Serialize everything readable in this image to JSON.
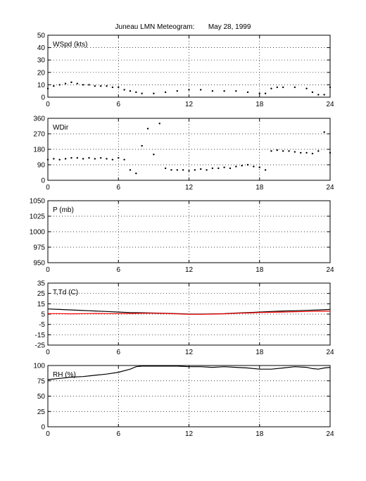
{
  "title": "Juneau LMN Meteogram:       May 28, 1999",
  "colors": {
    "axis": "#000000",
    "grid": "#000000",
    "temperature": "#000000",
    "dewpoint": "#ff0000",
    "rh": "#000000",
    "wind": "#000000"
  },
  "chart_data": [
    {
      "id": "wspd",
      "type": "scatter",
      "panel_label": "WSpd (kts)",
      "xlim": [
        0,
        24
      ],
      "ylim": [
        0,
        50
      ],
      "x_ticks": [
        0,
        6,
        12,
        18,
        24
      ],
      "y_ticks": [
        0,
        10,
        20,
        30,
        40,
        50
      ],
      "grid": true,
      "series": [
        {
          "values": [
            [
              0,
              7
            ],
            [
              0.5,
              9
            ],
            [
              1,
              10
            ],
            [
              1.5,
              11
            ],
            [
              2,
              12
            ],
            [
              2.5,
              11
            ],
            [
              3,
              10
            ],
            [
              3.5,
              10
            ],
            [
              4,
              9
            ],
            [
              4.5,
              9
            ],
            [
              5,
              9
            ],
            [
              5.5,
              8
            ],
            [
              6,
              8
            ],
            [
              6.5,
              6
            ],
            [
              7,
              5
            ],
            [
              7.5,
              4
            ],
            [
              8,
              3
            ],
            [
              9,
              3
            ],
            [
              10,
              4
            ],
            [
              11,
              5
            ],
            [
              12,
              6
            ],
            [
              13,
              6
            ],
            [
              14,
              5
            ],
            [
              15,
              5
            ],
            [
              16,
              5
            ],
            [
              17,
              4
            ],
            [
              18,
              3
            ],
            [
              18.5,
              3
            ],
            [
              19,
              7
            ],
            [
              19.5,
              8
            ],
            [
              20,
              8
            ],
            [
              21,
              8
            ],
            [
              22,
              7
            ],
            [
              22.5,
              4
            ],
            [
              23,
              2
            ],
            [
              23.5,
              2
            ],
            [
              24,
              8
            ]
          ]
        }
      ]
    },
    {
      "id": "wdir",
      "type": "scatter",
      "panel_label": "WDir",
      "xlim": [
        0,
        24
      ],
      "ylim": [
        0,
        360
      ],
      "x_ticks": [
        0,
        6,
        12,
        18,
        24
      ],
      "y_ticks": [
        0,
        90,
        180,
        270,
        360
      ],
      "grid": true,
      "series": [
        {
          "values": [
            [
              0,
              120
            ],
            [
              0.5,
              125
            ],
            [
              1,
              120
            ],
            [
              1.5,
              125
            ],
            [
              2,
              130
            ],
            [
              2.5,
              130
            ],
            [
              3,
              125
            ],
            [
              3.5,
              130
            ],
            [
              4,
              125
            ],
            [
              4.5,
              130
            ],
            [
              5,
              125
            ],
            [
              5.5,
              120
            ],
            [
              6,
              130
            ],
            [
              6.5,
              120
            ],
            [
              7,
              60
            ],
            [
              7.5,
              40
            ],
            [
              8,
              200
            ],
            [
              8.5,
              300
            ],
            [
              9,
              150
            ],
            [
              9.5,
              330
            ],
            [
              10,
              70
            ],
            [
              10.5,
              60
            ],
            [
              11,
              60
            ],
            [
              11.5,
              60
            ],
            [
              12,
              55
            ],
            [
              12.5,
              60
            ],
            [
              13,
              65
            ],
            [
              13.5,
              60
            ],
            [
              14,
              70
            ],
            [
              14.5,
              70
            ],
            [
              15,
              75
            ],
            [
              15.5,
              70
            ],
            [
              16,
              80
            ],
            [
              16.5,
              85
            ],
            [
              17,
              90
            ],
            [
              17.5,
              80
            ],
            [
              18,
              75
            ],
            [
              18.5,
              60
            ],
            [
              19,
              170
            ],
            [
              19.5,
              175
            ],
            [
              20,
              170
            ],
            [
              20.5,
              170
            ],
            [
              21,
              165
            ],
            [
              21.5,
              160
            ],
            [
              22,
              160
            ],
            [
              22.5,
              155
            ],
            [
              23,
              170
            ],
            [
              23.5,
              280
            ],
            [
              24,
              160
            ]
          ]
        }
      ]
    },
    {
      "id": "pressure",
      "type": "scatter",
      "panel_label": "P (mb)",
      "xlim": [
        0,
        24
      ],
      "ylim": [
        950,
        1050
      ],
      "x_ticks": [
        0,
        6,
        12,
        18,
        24
      ],
      "y_ticks": [
        950,
        975,
        1000,
        1025,
        1050
      ],
      "grid": true,
      "series": []
    },
    {
      "id": "temp",
      "type": "line",
      "panel_label": "T,Td (C)",
      "xlim": [
        0,
        24
      ],
      "ylim": [
        -25,
        35
      ],
      "x_ticks": [
        0,
        6,
        12,
        18,
        24
      ],
      "y_ticks": [
        -25,
        -15,
        -5,
        5,
        15,
        25,
        35
      ],
      "grid": true,
      "series": [
        {
          "values": [
            [
              0,
              10
            ],
            [
              1,
              9.5
            ],
            [
              2,
              9
            ],
            [
              3,
              8.5
            ],
            [
              4,
              8
            ],
            [
              5,
              7.5
            ],
            [
              6,
              7
            ],
            [
              7,
              6.5
            ],
            [
              8,
              6.3
            ],
            [
              9,
              6
            ],
            [
              10,
              5.8
            ],
            [
              11,
              5.5
            ],
            [
              12,
              5
            ],
            [
              13,
              5
            ],
            [
              14,
              5.2
            ],
            [
              15,
              5.5
            ],
            [
              16,
              6
            ],
            [
              17,
              6.5
            ],
            [
              18,
              7
            ],
            [
              19,
              7.5
            ],
            [
              20,
              8
            ],
            [
              21,
              8.3
            ],
            [
              22,
              8.6
            ],
            [
              23,
              9
            ],
            [
              24,
              9.5
            ]
          ]
        },
        {
          "values": [
            [
              0,
              5.5
            ],
            [
              1,
              5.5
            ],
            [
              2,
              5.3
            ],
            [
              3,
              5.5
            ],
            [
              4,
              5.6
            ],
            [
              5,
              5.5
            ],
            [
              6,
              5.5
            ],
            [
              7,
              5.6
            ],
            [
              8,
              5.8
            ],
            [
              9,
              5.8
            ],
            [
              10,
              5.6
            ],
            [
              11,
              5.2
            ],
            [
              12,
              4.8
            ],
            [
              13,
              4.8
            ],
            [
              14,
              5
            ],
            [
              15,
              5.3
            ],
            [
              16,
              5.8
            ],
            [
              17,
              6.1
            ],
            [
              18,
              6.5
            ],
            [
              19,
              6.8
            ],
            [
              20,
              7
            ],
            [
              21,
              7.3
            ],
            [
              22,
              7.5
            ],
            [
              23,
              7.8
            ],
            [
              24,
              7.8
            ]
          ]
        }
      ]
    },
    {
      "id": "rh",
      "type": "line",
      "panel_label": "RH (%)",
      "xlim": [
        0,
        24
      ],
      "ylim": [
        0,
        100
      ],
      "x_ticks": [
        0,
        6,
        12,
        18,
        24
      ],
      "y_ticks": [
        0,
        25,
        50,
        75,
        100
      ],
      "grid": true,
      "series": [
        {
          "values": [
            [
              0,
              77
            ],
            [
              1,
              79
            ],
            [
              2,
              81
            ],
            [
              3,
              82
            ],
            [
              4,
              84
            ],
            [
              5,
              86
            ],
            [
              6,
              89
            ],
            [
              7,
              94
            ],
            [
              7.5,
              98
            ],
            [
              8,
              99
            ],
            [
              9,
              99
            ],
            [
              10,
              99
            ],
            [
              11,
              99
            ],
            [
              12,
              98
            ],
            [
              13,
              98
            ],
            [
              14,
              97
            ],
            [
              15,
              98
            ],
            [
              16,
              97
            ],
            [
              17,
              96
            ],
            [
              18,
              94
            ],
            [
              19,
              94
            ],
            [
              20,
              96
            ],
            [
              21,
              98
            ],
            [
              22,
              97
            ],
            [
              22.5,
              95
            ],
            [
              23,
              94
            ],
            [
              23.5,
              96
            ],
            [
              24,
              97
            ]
          ]
        }
      ]
    }
  ]
}
